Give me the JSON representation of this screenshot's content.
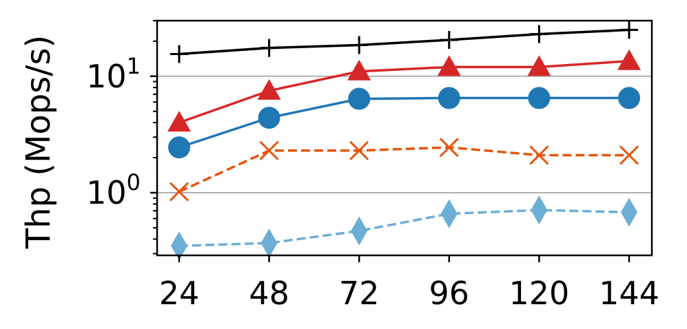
{
  "chart_data": {
    "type": "line",
    "xlabel": "",
    "ylabel": "Thp (Mops/s)",
    "yscale": "log",
    "ylim": [
      0.29,
      30
    ],
    "x": [
      24,
      48,
      72,
      96,
      120,
      144
    ],
    "xticks": [
      "24",
      "48",
      "72",
      "96",
      "120",
      "144"
    ],
    "yticks": [
      {
        "value": 1,
        "base": "10",
        "exp": "0"
      },
      {
        "value": 10,
        "base": "10",
        "exp": "1"
      }
    ],
    "grid": "horizontal-major",
    "series": [
      {
        "values": [
          15.5,
          17.5,
          18.5,
          20.5,
          23.0,
          25.0
        ],
        "color": "#000000",
        "marker": "plus",
        "linestyle": "solid"
      },
      {
        "values": [
          4.0,
          7.5,
          11.0,
          12.0,
          12.0,
          13.5
        ],
        "color": "#d62728",
        "marker": "triangle",
        "linestyle": "solid"
      },
      {
        "values": [
          2.45,
          4.4,
          6.4,
          6.5,
          6.5,
          6.5
        ],
        "color": "#1f77b4",
        "marker": "circle",
        "linestyle": "solid"
      },
      {
        "values": [
          1.02,
          2.3,
          2.3,
          2.45,
          2.1,
          2.1
        ],
        "color": "#e6550d",
        "marker": "x",
        "linestyle": "dashed"
      },
      {
        "values": [
          0.35,
          0.37,
          0.47,
          0.66,
          0.71,
          0.68
        ],
        "color": "#6baed6",
        "marker": "diamond",
        "linestyle": "dashed"
      }
    ]
  }
}
